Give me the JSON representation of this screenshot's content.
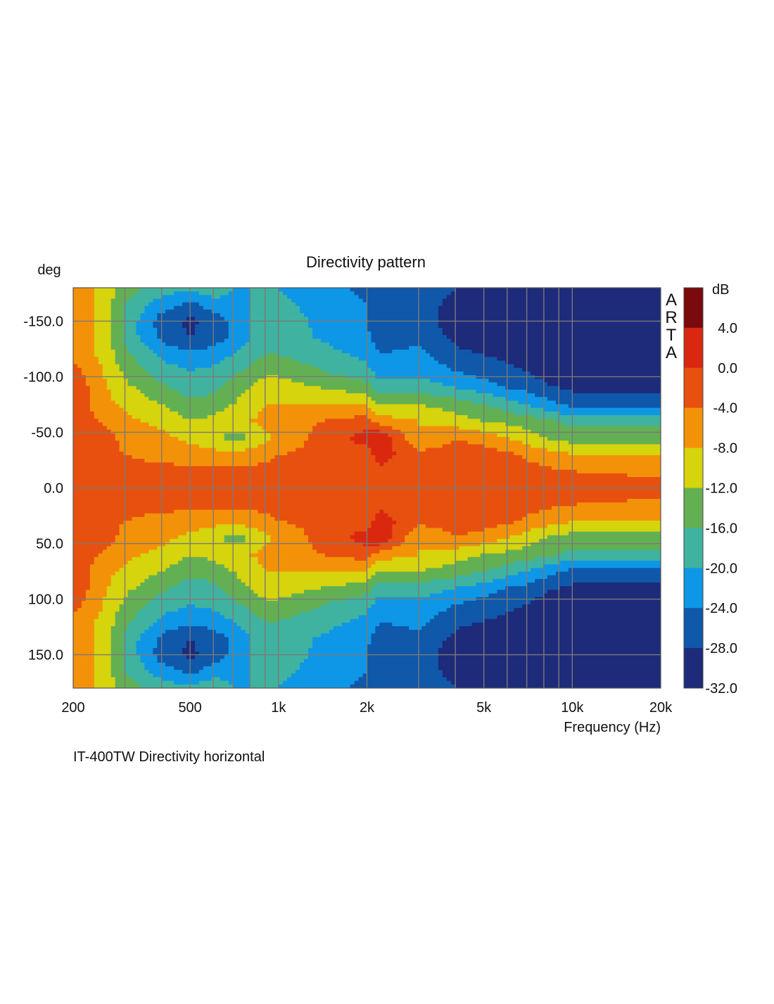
{
  "chart_data": {
    "type": "heatmap",
    "title": "Directivity pattern",
    "xlabel": "Frequency (Hz)",
    "ylabel": "deg",
    "x_scale": "log",
    "xlim": [
      200,
      20000
    ],
    "ylim": [
      -180,
      180
    ],
    "x_ticks": [
      {
        "value": 200,
        "label": "200"
      },
      {
        "value": 500,
        "label": "500"
      },
      {
        "value": 1000,
        "label": "1k"
      },
      {
        "value": 2000,
        "label": "2k"
      },
      {
        "value": 5000,
        "label": "5k"
      },
      {
        "value": 10000,
        "label": "10k"
      },
      {
        "value": 20000,
        "label": "20k"
      }
    ],
    "y_ticks": [
      {
        "value": -150,
        "label": "-150.0"
      },
      {
        "value": -100,
        "label": "-100.0"
      },
      {
        "value": -50,
        "label": "-50.0"
      },
      {
        "value": 0,
        "label": "0.0"
      },
      {
        "value": 50,
        "label": "50.0"
      },
      {
        "value": 100,
        "label": "100.0"
      },
      {
        "value": 150,
        "label": "150.0"
      }
    ],
    "grid": true,
    "colorbar": {
      "unit": "dB",
      "levels": [
        {
          "from": 4.0,
          "to": 8.0,
          "color": "#7b0a0e"
        },
        {
          "from": 0.0,
          "to": 4.0,
          "color": "#d9280f"
        },
        {
          "from": -4.0,
          "to": 0.0,
          "color": "#e8500f"
        },
        {
          "from": -8.0,
          "to": -4.0,
          "color": "#f39208"
        },
        {
          "from": -12.0,
          "to": -8.0,
          "color": "#d6d40c"
        },
        {
          "from": -16.0,
          "to": -12.0,
          "color": "#63b053"
        },
        {
          "from": -20.0,
          "to": -16.0,
          "color": "#3fb3a0"
        },
        {
          "from": -24.0,
          "to": -20.0,
          "color": "#0e97e6"
        },
        {
          "from": -28.0,
          "to": -24.0,
          "color": "#0f58aa"
        },
        {
          "from": -32.0,
          "to": -28.0,
          "color": "#1e2a7a"
        }
      ],
      "tick_labels": [
        "4.0",
        "0.0",
        "-4.0",
        "-8.0",
        "-12.0",
        "-16.0",
        "-20.0",
        "-24.0",
        "-28.0",
        "-32.0"
      ]
    },
    "watermark": "ARTA",
    "caption": "IT-400TW Directivity horizontal",
    "grid_freqs_hz": [
      200,
      216,
      262,
      300,
      400,
      500,
      600,
      700,
      800,
      900,
      1000,
      2000,
      2200,
      3000,
      4000,
      5000,
      6000,
      7000,
      8000,
      9000,
      10000,
      20000
    ],
    "angles_deg": [
      -180,
      -165,
      -150,
      -135,
      -120,
      -105,
      -90,
      -75,
      -60,
      -45,
      -30,
      -15,
      0,
      15,
      30,
      45,
      60,
      75,
      90,
      105,
      120,
      135,
      150,
      165,
      180
    ],
    "levels_db": [
      [
        -6,
        -6,
        -10,
        -14,
        -18,
        -19,
        -17,
        -20,
        -20,
        -19,
        -20,
        -25,
        -26,
        -24,
        -28,
        -29,
        -30,
        -30,
        -32,
        -32,
        -32,
        -32
      ],
      [
        -6,
        -6,
        -11,
        -16,
        -22,
        -25,
        -22,
        -21,
        -20,
        -19,
        -19,
        -24,
        -26,
        -25,
        -30,
        -30,
        -31,
        -32,
        -32,
        -32,
        -32,
        -32
      ],
      [
        -6,
        -6,
        -11,
        -17,
        -26,
        -29,
        -26,
        -23,
        -20,
        -19,
        -18,
        -24,
        -27,
        -26,
        -30,
        -31,
        -31,
        -32,
        -32,
        -32,
        -32,
        -32
      ],
      [
        -6,
        -6,
        -11,
        -17,
        -25,
        -28,
        -26,
        -23,
        -20,
        -18,
        -18,
        -23,
        -26,
        -25,
        -29,
        -30,
        -31,
        -32,
        -32,
        -32,
        -32,
        -32
      ],
      [
        -5,
        -6,
        -10,
        -15,
        -21,
        -23,
        -22,
        -20,
        -18,
        -16,
        -16,
        -21,
        -24,
        -23,
        -27,
        -28,
        -29,
        -30,
        -32,
        -32,
        -32,
        -32
      ],
      [
        -3,
        -4,
        -9,
        -13,
        -18,
        -20,
        -19,
        -17,
        -15,
        -13,
        -13,
        -19,
        -22,
        -21,
        -24,
        -26,
        -27,
        -28,
        -30,
        -31,
        -32,
        -32
      ],
      [
        -3,
        -3,
        -8,
        -11,
        -15,
        -18,
        -17,
        -14,
        -12,
        -10,
        -10,
        -14,
        -18,
        -18,
        -20,
        -22,
        -24,
        -25,
        -27,
        -28,
        -29,
        -29
      ],
      [
        -3,
        -3,
        -7,
        -9,
        -12,
        -15,
        -14,
        -12,
        -10,
        -8,
        -8,
        -8,
        -12,
        -12,
        -14,
        -16,
        -18,
        -20,
        -22,
        -24,
        -25,
        -25
      ],
      [
        -2,
        -2,
        -5,
        -7,
        -9,
        -12,
        -11,
        -9,
        -8,
        -7,
        -6,
        -2,
        -6,
        -8,
        -10,
        -12,
        -13,
        -14,
        -15,
        -16,
        -17,
        -17
      ],
      [
        -2,
        -2,
        -3,
        -5,
        -7,
        -9,
        -10,
        -14,
        -12,
        -9,
        -7,
        2,
        4,
        -8,
        -4,
        -6,
        -8,
        -10,
        -12,
        -13,
        -14,
        -14
      ],
      [
        -2,
        -2,
        -3,
        -4,
        -5,
        -6,
        -7,
        -7,
        -6,
        -5,
        -4,
        -2,
        2,
        -3,
        -2,
        -2,
        -3,
        -5,
        -6,
        -7,
        -8,
        -8
      ],
      [
        -2,
        -2,
        -2,
        -3,
        -3,
        -3,
        -3,
        -3,
        -3,
        -3,
        -2,
        -2,
        -1,
        -2,
        -2,
        -1,
        -2,
        -2,
        -3,
        -4,
        -4,
        -5
      ],
      [
        -2,
        -2,
        -2,
        -2,
        -2,
        -2,
        -2,
        -2,
        -2,
        -2,
        -2,
        -2,
        -2,
        -2,
        -2,
        -2,
        -2,
        -2,
        -2,
        -2,
        -2,
        -2
      ],
      [
        -2,
        -2,
        -2,
        -3,
        -3,
        -3,
        -3,
        -3,
        -3,
        -3,
        -2,
        -2,
        -1,
        -2,
        -2,
        -1,
        -2,
        -2,
        -3,
        -4,
        -4,
        -5
      ],
      [
        -2,
        -2,
        -3,
        -4,
        -5,
        -6,
        -7,
        -7,
        -6,
        -5,
        -4,
        -2,
        2,
        -3,
        -2,
        -2,
        -3,
        -5,
        -6,
        -7,
        -8,
        -8
      ],
      [
        -2,
        -2,
        -3,
        -5,
        -7,
        -9,
        -10,
        -14,
        -12,
        -9,
        -7,
        2,
        4,
        -8,
        -4,
        -6,
        -8,
        -10,
        -12,
        -13,
        -14,
        -14
      ],
      [
        -2,
        -2,
        -5,
        -7,
        -9,
        -12,
        -11,
        -9,
        -8,
        -7,
        -6,
        -2,
        -6,
        -8,
        -10,
        -12,
        -13,
        -14,
        -15,
        -16,
        -17,
        -17
      ],
      [
        -3,
        -3,
        -7,
        -9,
        -12,
        -15,
        -14,
        -12,
        -10,
        -8,
        -8,
        -8,
        -12,
        -12,
        -14,
        -16,
        -18,
        -20,
        -22,
        -24,
        -25,
        -25
      ],
      [
        -3,
        -3,
        -8,
        -11,
        -15,
        -18,
        -17,
        -14,
        -12,
        -10,
        -10,
        -14,
        -18,
        -18,
        -20,
        -22,
        -24,
        -25,
        -27,
        -28,
        -29,
        -29
      ],
      [
        -3,
        -4,
        -9,
        -13,
        -18,
        -20,
        -19,
        -17,
        -15,
        -13,
        -13,
        -19,
        -22,
        -21,
        -24,
        -26,
        -27,
        -28,
        -30,
        -31,
        -32,
        -32
      ],
      [
        -5,
        -6,
        -10,
        -15,
        -21,
        -23,
        -22,
        -20,
        -18,
        -16,
        -16,
        -21,
        -24,
        -23,
        -27,
        -28,
        -29,
        -30,
        -32,
        -32,
        -32,
        -32
      ],
      [
        -6,
        -6,
        -11,
        -17,
        -25,
        -28,
        -26,
        -23,
        -20,
        -18,
        -18,
        -23,
        -26,
        -25,
        -29,
        -30,
        -31,
        -32,
        -32,
        -32,
        -32,
        -32
      ],
      [
        -6,
        -6,
        -11,
        -17,
        -26,
        -29,
        -26,
        -23,
        -20,
        -19,
        -18,
        -24,
        -27,
        -26,
        -30,
        -31,
        -31,
        -32,
        -32,
        -32,
        -32,
        -32
      ],
      [
        -6,
        -6,
        -11,
        -16,
        -22,
        -25,
        -22,
        -21,
        -20,
        -19,
        -19,
        -24,
        -26,
        -25,
        -30,
        -30,
        -31,
        -32,
        -32,
        -32,
        -32,
        -32
      ],
      [
        -6,
        -6,
        -10,
        -14,
        -18,
        -19,
        -17,
        -20,
        -20,
        -19,
        -20,
        -25,
        -26,
        -24,
        -28,
        -29,
        -30,
        -30,
        -32,
        -32,
        -32,
        -32
      ]
    ]
  }
}
